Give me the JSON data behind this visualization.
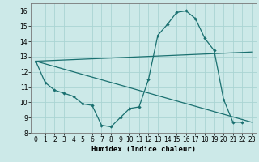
{
  "xlabel": "Humidex (Indice chaleur)",
  "xlim": [
    -0.5,
    23.5
  ],
  "ylim": [
    8,
    16.5
  ],
  "yticks": [
    8,
    9,
    10,
    11,
    12,
    13,
    14,
    15,
    16
  ],
  "xticks": [
    0,
    1,
    2,
    3,
    4,
    5,
    6,
    7,
    8,
    9,
    10,
    11,
    12,
    13,
    14,
    15,
    16,
    17,
    18,
    19,
    20,
    21,
    22,
    23
  ],
  "background_color": "#cce9e8",
  "grid_color": "#aad4d3",
  "line_color": "#1a7070",
  "line1_x": [
    0,
    1,
    2,
    3,
    4,
    5,
    6,
    7,
    8,
    9,
    10,
    11,
    12,
    13,
    14,
    15,
    16,
    17,
    18,
    19,
    20,
    21,
    22
  ],
  "line1_y": [
    12.7,
    11.3,
    10.8,
    10.6,
    10.4,
    9.9,
    9.8,
    8.5,
    8.4,
    9.0,
    9.6,
    9.7,
    11.5,
    14.4,
    15.1,
    15.9,
    16.0,
    15.5,
    14.2,
    13.4,
    10.2,
    8.7,
    8.7
  ],
  "line2_x": [
    0,
    23
  ],
  "line2_y": [
    12.7,
    13.3
  ],
  "line3_x": [
    0,
    23
  ],
  "line3_y": [
    12.7,
    8.7
  ]
}
